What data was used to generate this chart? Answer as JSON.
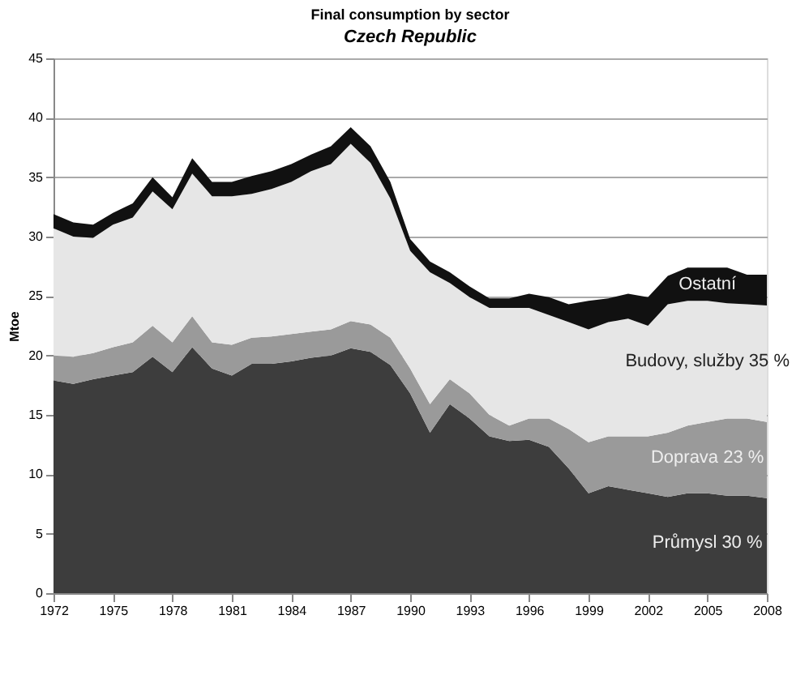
{
  "chart_data": {
    "type": "area",
    "title": "Final consumption by sector",
    "subtitle": "Czech Republic",
    "ylabel": "Mtoe",
    "stacked": true,
    "x": [
      1972,
      1973,
      1974,
      1975,
      1976,
      1977,
      1978,
      1979,
      1980,
      1981,
      1982,
      1983,
      1984,
      1985,
      1986,
      1987,
      1988,
      1989,
      1990,
      1991,
      1992,
      1993,
      1994,
      1995,
      1996,
      1997,
      1998,
      1999,
      2000,
      2001,
      2002,
      2003,
      2004,
      2005,
      2006,
      2007,
      2008
    ],
    "series": [
      {
        "name": "Průmysl 30 %",
        "color": "#3d3d3d",
        "values": [
          17.9,
          17.6,
          18.0,
          18.3,
          18.6,
          19.9,
          18.6,
          20.7,
          18.9,
          18.3,
          19.3,
          19.3,
          19.5,
          19.8,
          20.0,
          20.6,
          20.3,
          19.2,
          16.8,
          13.5,
          15.9,
          14.7,
          13.2,
          12.8,
          12.9,
          12.3,
          10.5,
          8.4,
          9.0,
          8.7,
          8.4,
          8.1,
          8.4,
          8.4,
          8.2,
          8.2,
          8.0
        ]
      },
      {
        "name": "Doprava 23 %",
        "color": "#9a9a9a",
        "values": [
          2.1,
          2.3,
          2.2,
          2.4,
          2.5,
          2.6,
          2.5,
          2.6,
          2.2,
          2.6,
          2.2,
          2.3,
          2.3,
          2.2,
          2.2,
          2.3,
          2.3,
          2.3,
          2.1,
          2.4,
          2.1,
          2.1,
          1.8,
          1.3,
          1.8,
          2.4,
          3.3,
          4.3,
          4.2,
          4.5,
          4.8,
          5.4,
          5.7,
          6.0,
          6.5,
          6.5,
          6.4
        ]
      },
      {
        "name": "Budovy, služby 35 %",
        "color": "#e6e6e6",
        "values": [
          10.7,
          10.1,
          9.7,
          10.3,
          10.5,
          11.3,
          11.2,
          12.0,
          12.3,
          12.5,
          12.1,
          12.4,
          12.8,
          13.5,
          13.9,
          14.9,
          13.6,
          11.7,
          9.9,
          11.1,
          8.1,
          8.1,
          9.0,
          9.9,
          9.3,
          8.7,
          9.0,
          9.5,
          9.6,
          9.9,
          9.3,
          10.8,
          10.5,
          10.2,
          9.7,
          9.6,
          9.8
        ]
      },
      {
        "name": "Ostatní",
        "color": "#111111",
        "values": [
          1.2,
          1.2,
          1.1,
          1.0,
          1.2,
          1.2,
          1.0,
          1.3,
          1.2,
          1.2,
          1.5,
          1.5,
          1.5,
          1.4,
          1.5,
          1.4,
          1.4,
          1.4,
          1.0,
          0.9,
          0.9,
          0.9,
          0.8,
          0.8,
          1.2,
          1.5,
          1.5,
          2.4,
          2.0,
          2.1,
          2.4,
          2.4,
          2.8,
          2.8,
          3.0,
          2.5,
          2.6
        ]
      }
    ],
    "xlim": [
      1972,
      2008
    ],
    "xticks": [
      1972,
      1975,
      1978,
      1981,
      1984,
      1987,
      1990,
      1993,
      1996,
      1999,
      2002,
      2005,
      2008
    ],
    "ylim": [
      0,
      45
    ],
    "yticks": [
      0,
      5,
      10,
      15,
      20,
      25,
      30,
      35,
      40,
      45
    ],
    "grid": "y",
    "legend": false
  }
}
